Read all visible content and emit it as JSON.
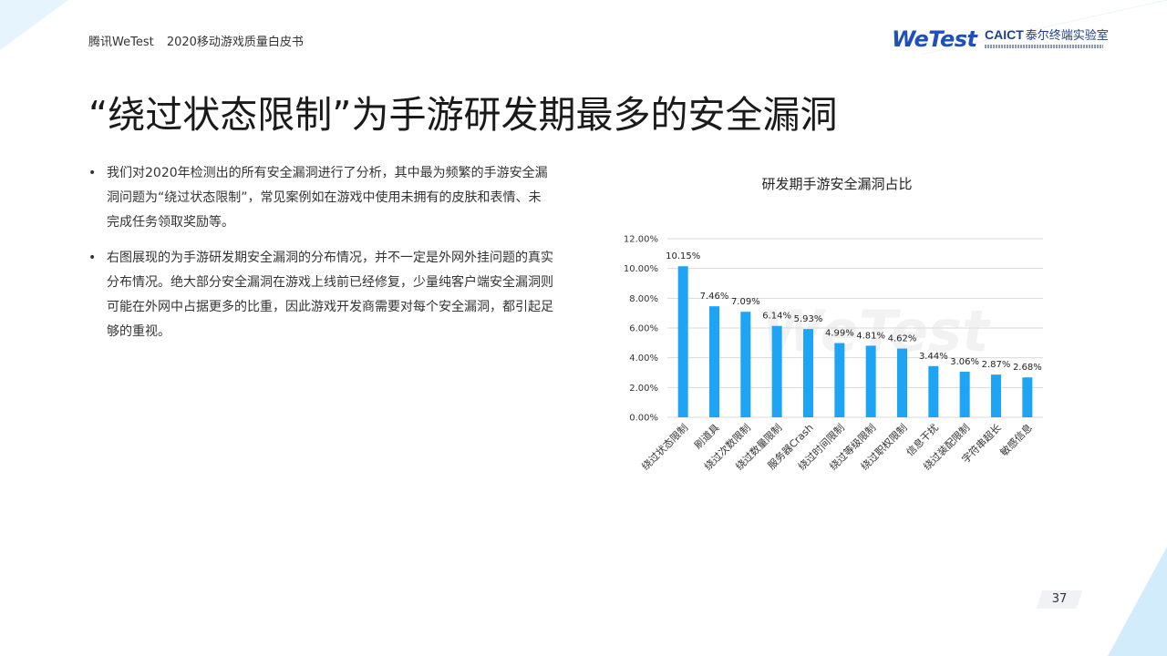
{
  "header": {
    "brand": "腾讯WeTest",
    "report": "2020移动游戏质量白皮书",
    "logo_wetest": "WeTest",
    "logo_caict": "CAICT",
    "logo_lab": "泰尔终端实验室"
  },
  "title": "“绕过状态限制”为手游研发期最多的安全漏洞",
  "bullets": [
    "我们对2020年检测出的所有安全漏洞进行了分析，其中最为频繁的手游安全漏洞问题为“绕过状态限制”，常见案例如在游戏中使用未拥有的皮肤和表情、未完成任务领取奖励等。",
    "右图展现的为手游研发期安全漏洞的分布情况，并不一定是外网外挂问题的真实分布情况。绝大部分安全漏洞在游戏上线前已经修复，少量纯客户端安全漏洞则可能在外网中占据更多的比重，因此游戏开发商需要对每个安全漏洞，都引起足够的重视。"
  ],
  "chart_data": {
    "type": "bar",
    "title": "研发期手游安全漏洞占比",
    "categories": [
      "绕过状态限制",
      "刷道具",
      "绕过次数限制",
      "绕过数量限制",
      "服务器Crash",
      "绕过时间限制",
      "绕过等级限制",
      "绕过职权限制",
      "信息干扰",
      "绕过装配限制",
      "字符串超长",
      "敏感信息"
    ],
    "values": [
      10.15,
      7.46,
      7.09,
      6.14,
      5.93,
      4.99,
      4.81,
      4.62,
      3.44,
      3.06,
      2.87,
      2.68
    ],
    "value_labels": [
      "10.15%",
      "7.46%",
      "7.09%",
      "6.14%",
      "5.93%",
      "4.99%",
      "4.81%",
      "4.62%",
      "3.44%",
      "3.06%",
      "2.87%",
      "2.68%"
    ],
    "y_ticks": [
      0,
      2,
      4,
      6,
      8,
      10,
      12
    ],
    "y_tick_labels": [
      "0.00%",
      "2.00%",
      "4.00%",
      "6.00%",
      "8.00%",
      "10.00%",
      "12.00%"
    ],
    "ylim": [
      0,
      12
    ],
    "grid": true,
    "legend": "none",
    "bar_color": "#1ea4f4",
    "watermark": "WeTest"
  },
  "page_number": "37"
}
